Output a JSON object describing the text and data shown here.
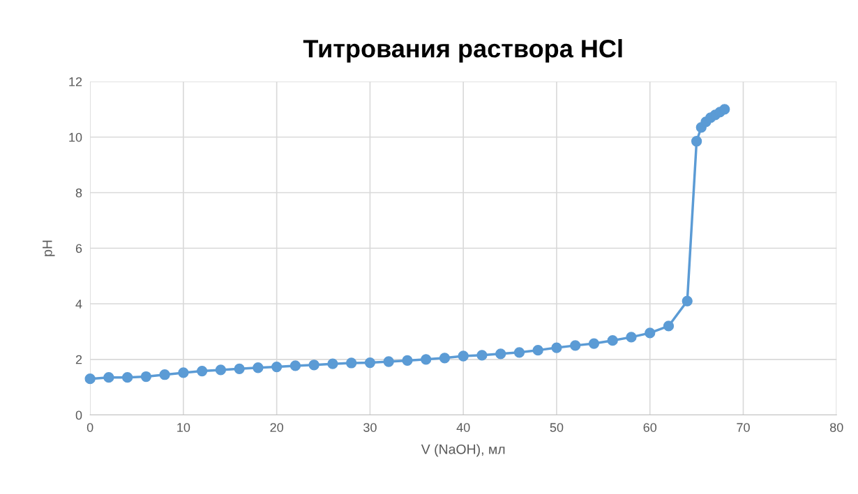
{
  "chart_data": {
    "type": "line",
    "title": "Титрования раствора HCl",
    "xlabel": "V (NaOH), мл",
    "ylabel": "pH",
    "x": [
      0,
      2,
      4,
      6,
      8,
      10,
      12,
      14,
      16,
      18,
      20,
      22,
      24,
      26,
      28,
      30,
      32,
      34,
      36,
      38,
      40,
      42,
      44,
      46,
      48,
      50,
      52,
      54,
      56,
      58,
      60,
      62,
      64,
      65,
      65.5,
      66,
      66.5,
      67,
      67.5,
      68
    ],
    "series": [
      {
        "color": "#5b9bd5",
        "values": [
          1.3,
          1.35,
          1.35,
          1.38,
          1.45,
          1.52,
          1.58,
          1.62,
          1.66,
          1.7,
          1.73,
          1.77,
          1.8,
          1.84,
          1.87,
          1.88,
          1.92,
          1.96,
          2.0,
          2.05,
          2.12,
          2.15,
          2.2,
          2.25,
          2.33,
          2.42,
          2.5,
          2.57,
          2.68,
          2.8,
          2.95,
          3.2,
          4.1,
          9.85,
          10.35,
          10.55,
          10.7,
          10.8,
          10.9,
          11.0
        ]
      }
    ],
    "xlim": [
      0,
      80
    ],
    "xticks": [
      0,
      10,
      20,
      30,
      40,
      50,
      60,
      70,
      80
    ],
    "ylim": [
      0,
      12
    ],
    "yticks": [
      0,
      2,
      4,
      6,
      8,
      10,
      12
    ],
    "grid": true,
    "marker": "circle",
    "line_style": "solid",
    "legend": false
  }
}
